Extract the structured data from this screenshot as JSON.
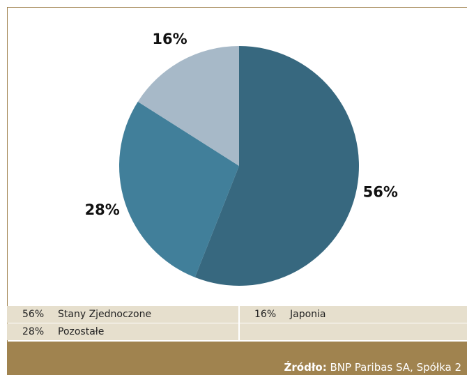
{
  "chart_data": {
    "type": "pie",
    "categories": [
      "Stany Zjednoczone",
      "Pozostałe",
      "Japonia"
    ],
    "values": [
      56,
      28,
      16
    ],
    "value_labels": [
      "56%",
      "28%",
      "16%"
    ],
    "colors": [
      "#37687f",
      "#417f9a",
      "#a7b9c8"
    ],
    "source_label": "Źródło:",
    "source": "BNP Paribas SA, Spółka 2"
  }
}
